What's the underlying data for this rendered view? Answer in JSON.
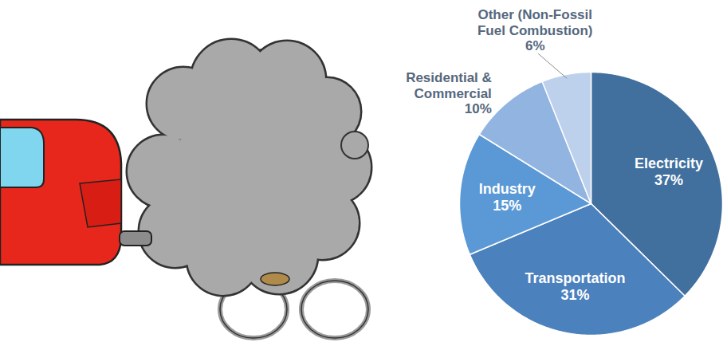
{
  "chart_data": {
    "type": "pie",
    "categories": [
      "Electricity",
      "Transportation",
      "Industry",
      "Residential & Commercial",
      "Other (Non-Fossil Fuel Combustion)"
    ],
    "values": [
      37,
      31,
      15,
      10,
      6
    ],
    "value_labels": [
      "37%",
      "31%",
      "15%",
      "10%",
      "6%"
    ],
    "colors": [
      "#41709f",
      "#4b81bd",
      "#5a99d6",
      "#92b4e0",
      "#bdd0ec"
    ],
    "data_labels": true
  }
}
